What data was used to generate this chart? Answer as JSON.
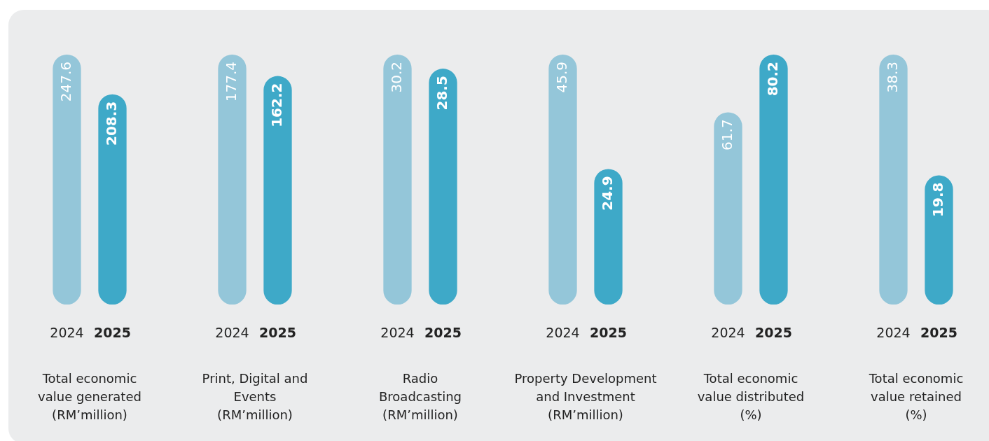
{
  "chart_data": [
    {
      "type": "bar",
      "categories": [
        "2024",
        "2025"
      ],
      "values": [
        247.6,
        208.3
      ],
      "colors": [
        "#94c6d9",
        "#3ea9c8"
      ],
      "data_labels": true,
      "xlabel": "Total economic\nvalue generated\n(RM’million)"
    },
    {
      "type": "bar",
      "categories": [
        "2024",
        "2025"
      ],
      "values": [
        177.4,
        162.2
      ],
      "colors": [
        "#94c6d9",
        "#3ea9c8"
      ],
      "data_labels": true,
      "xlabel": "Print, Digital and\nEvents\n(RM’million)"
    },
    {
      "type": "bar",
      "categories": [
        "2024",
        "2025"
      ],
      "values": [
        30.2,
        28.5
      ],
      "colors": [
        "#94c6d9",
        "#3ea9c8"
      ],
      "data_labels": true,
      "xlabel": "Radio\nBroadcasting\n(RM’million)"
    },
    {
      "type": "bar",
      "categories": [
        "2024",
        "2025"
      ],
      "values": [
        45.9,
        24.9
      ],
      "colors": [
        "#94c6d9",
        "#3ea9c8"
      ],
      "data_labels": true,
      "xlabel": "Property Development\nand Investment\n(RM’million)"
    },
    {
      "type": "bar",
      "categories": [
        "2024",
        "2025"
      ],
      "values": [
        61.7,
        80.2
      ],
      "colors": [
        "#94c6d9",
        "#3ea9c8"
      ],
      "data_labels": true,
      "xlabel": "Total economic\nvalue distributed\n(%)"
    },
    {
      "type": "bar",
      "categories": [
        "2024",
        "2025"
      ],
      "values": [
        38.3,
        19.8
      ],
      "colors": [
        "#94c6d9",
        "#3ea9c8"
      ],
      "data_labels": true,
      "xlabel": "Total economic\nvalue retained\n(%)"
    }
  ]
}
